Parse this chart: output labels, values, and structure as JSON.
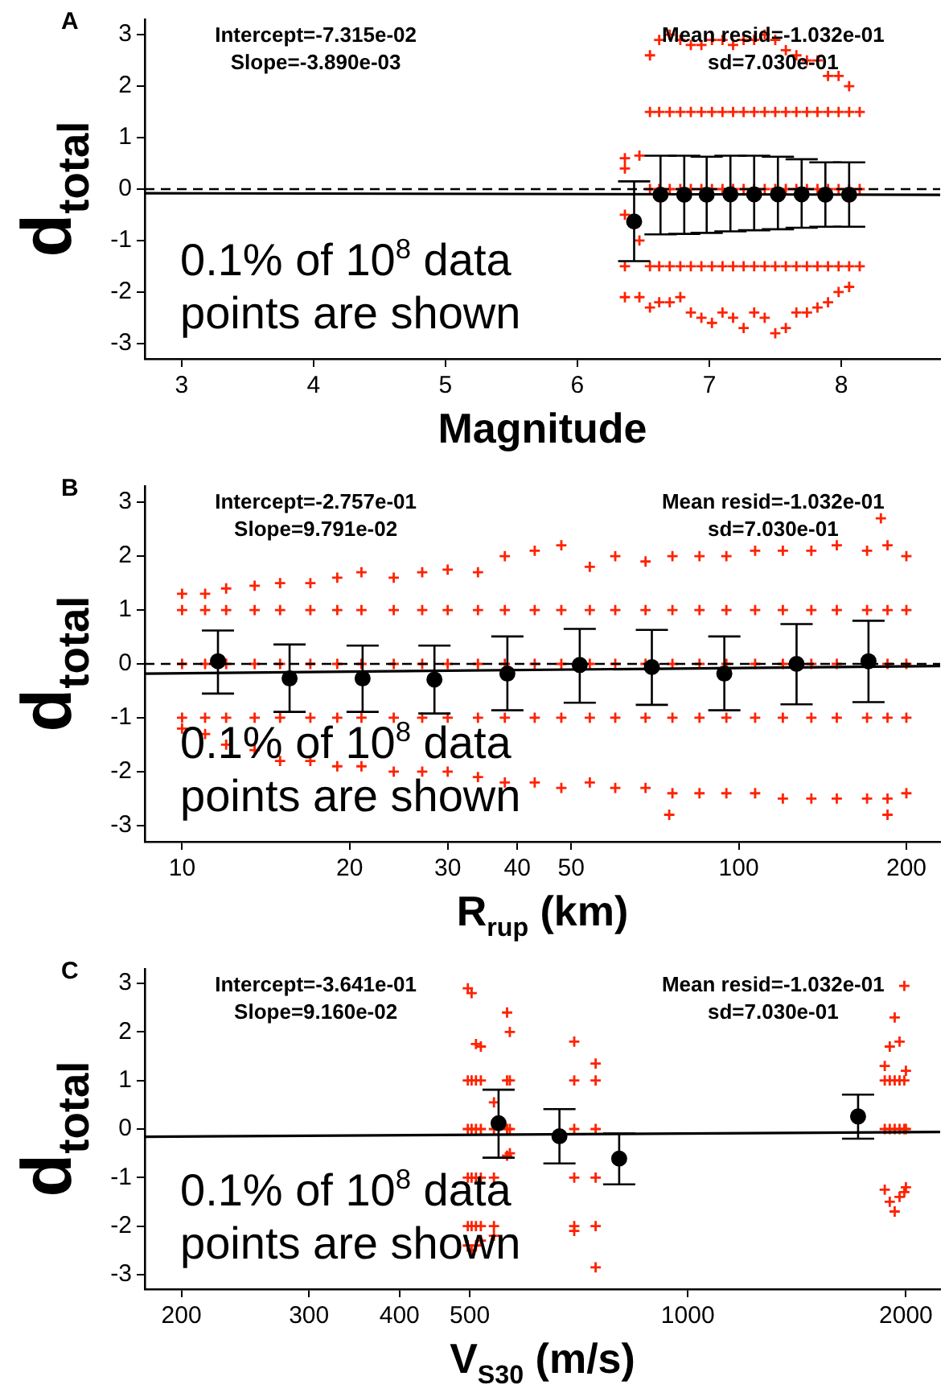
{
  "chart_data": [
    {
      "type": "scatter",
      "title": "A",
      "xlabel": "Magnitude",
      "ylabel": "d$_{total}$",
      "xlim": [
        2.72,
        8.75
      ],
      "ylim": [
        -3.3,
        3.3
      ],
      "xticks": [
        3,
        4,
        5,
        6,
        7,
        8
      ],
      "yticks": [
        -3,
        -2,
        -1,
        0,
        1,
        2,
        3
      ],
      "grid": false,
      "annotations": [
        "Intercept=-7.315e-02\nSlope=-3.890e-03",
        "Mean resid=-1.032e-01\nsd=7.030e-01",
        "0.1% of 10$^{8}$ data\npoints are shown"
      ],
      "ref_lines": [
        {
          "axis": "y",
          "value": 0,
          "line_style": "dashed",
          "color": "#000000"
        }
      ],
      "series": [
        {
          "color": "#ff2200",
          "marker": "cross",
          "x": [
            6.36,
            6.36,
            6.36,
            6.36,
            6.36,
            6.47,
            6.47,
            6.47,
            6.55,
            6.55,
            6.55,
            6.55,
            6.55,
            6.62,
            6.62,
            6.62,
            6.62,
            6.62,
            6.7,
            6.7,
            6.7,
            6.7,
            6.7,
            6.78,
            6.78,
            6.78,
            6.78,
            6.78,
            6.86,
            6.86,
            6.86,
            6.86,
            6.86,
            6.94,
            6.94,
            6.94,
            6.94,
            6.94,
            7.02,
            7.02,
            7.02,
            7.02,
            7.02,
            7.1,
            7.1,
            7.1,
            7.1,
            7.1,
            7.18,
            7.18,
            7.18,
            7.18,
            7.18,
            7.26,
            7.26,
            7.26,
            7.26,
            7.26,
            7.34,
            7.34,
            7.34,
            7.34,
            7.34,
            7.42,
            7.42,
            7.42,
            7.42,
            7.42,
            7.5,
            7.5,
            7.5,
            7.5,
            7.5,
            7.58,
            7.58,
            7.58,
            7.58,
            7.58,
            7.66,
            7.66,
            7.66,
            7.66,
            7.66,
            7.74,
            7.74,
            7.74,
            7.74,
            7.74,
            7.82,
            7.82,
            7.82,
            7.82,
            7.82,
            7.9,
            7.9,
            7.9,
            7.9,
            7.9,
            7.98,
            7.98,
            7.98,
            7.98,
            7.98,
            8.06,
            8.06,
            8.06,
            8.06,
            8.06,
            8.14,
            8.14,
            8.14
          ],
          "values": [
            0.6,
            0.4,
            -0.5,
            -1.5,
            -2.1,
            0.65,
            -1.0,
            -2.1,
            2.6,
            1.5,
            0,
            -1.5,
            -2.3,
            2.9,
            1.5,
            0,
            -1.5,
            -2.2,
            3.0,
            1.5,
            0,
            -1.5,
            -2.2,
            2.9,
            1.5,
            0,
            -1.5,
            -2.1,
            2.8,
            1.5,
            0,
            -1.5,
            -2.4,
            2.8,
            1.5,
            0,
            -1.5,
            -2.5,
            2.9,
            1.5,
            0,
            -1.5,
            -2.6,
            2.9,
            1.5,
            0,
            -1.5,
            -2.4,
            2.8,
            1.5,
            0,
            -1.5,
            -2.5,
            2.9,
            1.5,
            0,
            -1.5,
            -2.7,
            2.9,
            1.5,
            0,
            -1.5,
            -2.4,
            3.0,
            1.5,
            0,
            -1.5,
            -2.5,
            2.9,
            1.5,
            0,
            -1.5,
            -2.8,
            2.7,
            1.5,
            0,
            -1.5,
            -2.7,
            2.6,
            1.5,
            0,
            -1.5,
            -2.4,
            2.5,
            1.5,
            0,
            -1.5,
            -2.4,
            2.5,
            1.5,
            0,
            -1.5,
            -2.3,
            2.2,
            1.5,
            0,
            -1.5,
            -2.2,
            2.2,
            1.5,
            0,
            -1.5,
            -2.0,
            2.0,
            1.5,
            0,
            -1.5,
            -1.9,
            1.5,
            0,
            -1.5
          ]
        },
        {
          "type": "line",
          "color": "#000000",
          "x": [
            2.72,
            8.75
          ],
          "values": [
            -0.08,
            -0.11
          ]
        },
        {
          "color": "#000000",
          "marker": "circle",
          "x": [
            6.43,
            6.63,
            6.81,
            6.98,
            7.16,
            7.34,
            7.52,
            7.7,
            7.88,
            8.06
          ],
          "values": [
            -0.63,
            -0.11,
            -0.11,
            -0.11,
            -0.1,
            -0.1,
            -0.1,
            -0.1,
            -0.11,
            -0.11
          ],
          "errors": [
            [
              -1.4,
              0.15
            ],
            [
              -0.88,
              0.65
            ],
            [
              -0.87,
              0.65
            ],
            [
              -0.85,
              0.63
            ],
            [
              -0.82,
              0.65
            ],
            [
              -0.8,
              0.65
            ],
            [
              -0.78,
              0.63
            ],
            [
              -0.75,
              0.58
            ],
            [
              -0.73,
              0.52
            ],
            [
              -0.73,
              0.52
            ]
          ]
        }
      ]
    },
    {
      "type": "scatter",
      "title": "B",
      "xlabel": "R$_{rup}$ (km)",
      "ylabel": "d$_{total}$",
      "log": "x",
      "xlim": [
        8.57,
        230
      ],
      "ylim": [
        -3.3,
        3.3
      ],
      "xticks": [
        10,
        20,
        30,
        40,
        50,
        100,
        200
      ],
      "yticks": [
        -3,
        -2,
        -1,
        0,
        1,
        2,
        3
      ],
      "grid": false,
      "annotations": [
        "Intercept=-2.757e-01\nSlope=9.791e-02",
        "Mean resid=-1.032e-01\nsd=7.030e-01",
        "0.1% of 10$^{8}$ data\npoints are shown"
      ],
      "ref_lines": [
        {
          "axis": "y",
          "value": 0,
          "line_style": "dashed",
          "color": "#000000"
        }
      ],
      "series": [
        {
          "color": "#ff2200",
          "marker": "cross",
          "x": [
            10,
            10,
            10,
            10,
            10,
            11,
            11,
            11,
            11,
            11,
            12,
            12,
            12,
            12,
            12,
            13.5,
            13.5,
            13.5,
            13.5,
            13.5,
            15,
            15,
            15,
            15,
            15,
            17,
            17,
            17,
            17,
            17,
            19,
            19,
            19,
            19,
            19,
            21,
            21,
            21,
            21,
            21,
            24,
            24,
            24,
            24,
            24,
            27,
            27,
            27,
            27,
            27,
            30,
            30,
            30,
            30,
            30,
            34,
            34,
            34,
            34,
            34,
            38,
            38,
            38,
            38,
            38,
            43,
            43,
            43,
            43,
            43,
            48,
            48,
            48,
            48,
            48,
            54,
            54,
            54,
            54,
            54,
            60,
            60,
            60,
            60,
            60,
            68,
            68,
            68,
            68,
            68,
            76,
            76,
            76,
            76,
            76,
            85,
            85,
            85,
            85,
            85,
            95,
            95,
            95,
            95,
            95,
            107,
            107,
            107,
            107,
            107,
            120,
            120,
            120,
            120,
            120,
            135,
            135,
            135,
            135,
            135,
            150,
            150,
            150,
            150,
            150,
            170,
            170,
            170,
            170,
            170,
            185,
            185,
            185,
            185,
            185,
            200,
            200,
            200,
            200,
            200,
            180,
            75,
            185
          ],
          "values": [
            1.3,
            1,
            0,
            -1,
            -1.2,
            1.3,
            1,
            0,
            -1,
            -1.3,
            1.4,
            1,
            0,
            -1,
            -1.5,
            1.45,
            1,
            0,
            -1,
            -1.6,
            1.5,
            1,
            0,
            -1,
            -1.8,
            1.5,
            1,
            0,
            -1,
            -1.8,
            1.6,
            1,
            0,
            -1,
            -1.9,
            1.7,
            1,
            0,
            -1,
            -1.9,
            1.6,
            1,
            0,
            -1,
            -2.0,
            1.7,
            1,
            0,
            -1,
            -2.0,
            1.75,
            1,
            0,
            -1,
            -2.0,
            1.7,
            1,
            0,
            -1,
            -2.1,
            2.0,
            1,
            0,
            -1,
            -2.2,
            2.1,
            1,
            0,
            -1,
            -2.2,
            2.2,
            1,
            0,
            -1,
            -2.3,
            1.8,
            1,
            0,
            -1,
            -2.2,
            2.0,
            1,
            0,
            -1,
            -2.3,
            1.9,
            1,
            0,
            -1,
            -2.3,
            2.0,
            1,
            0,
            -1,
            -2.4,
            2.0,
            1,
            0,
            -1,
            -2.4,
            2.0,
            1,
            0,
            -1,
            -2.4,
            2.1,
            1,
            0,
            -1,
            -2.4,
            2.1,
            1,
            0,
            -1,
            -2.5,
            2.1,
            1,
            0,
            -1,
            -2.5,
            2.2,
            1,
            0,
            -1,
            -2.5,
            2.1,
            1,
            0,
            -1,
            -2.5,
            2.2,
            1,
            0,
            -1,
            -2.5,
            2.0,
            1,
            0,
            -1,
            -2.4,
            2.7,
            -2.8,
            -2.8
          ]
        },
        {
          "type": "line",
          "color": "#000000",
          "x": [
            8.57,
            230
          ],
          "values": [
            -0.18,
            -0.04
          ]
        },
        {
          "color": "#000000",
          "marker": "circle",
          "x": [
            11.6,
            15.6,
            21.1,
            28.4,
            38.4,
            51.8,
            69.8,
            94.2,
            127,
            171
          ],
          "values": [
            0.05,
            -0.27,
            -0.27,
            -0.29,
            -0.18,
            -0.02,
            -0.06,
            -0.18,
            0.0,
            0.05
          ],
          "errors": [
            [
              -0.55,
              0.62
            ],
            [
              -0.89,
              0.36
            ],
            [
              -0.89,
              0.34
            ],
            [
              -0.92,
              0.34
            ],
            [
              -0.86,
              0.51
            ],
            [
              -0.72,
              0.65
            ],
            [
              -0.76,
              0.63
            ],
            [
              -0.86,
              0.51
            ],
            [
              -0.75,
              0.74
            ],
            [
              -0.71,
              0.8
            ]
          ]
        }
      ]
    },
    {
      "type": "scatter",
      "title": "C",
      "xlabel": "V$_{S30}$ (m/s)",
      "ylabel": "d$_{total}$",
      "log": "x",
      "xlim": [
        178,
        2230
      ],
      "ylim": [
        -3.3,
        3.3
      ],
      "xticks": [
        200,
        300,
        400,
        500,
        1000,
        2000
      ],
      "yticks": [
        -3,
        -2,
        -1,
        0,
        1,
        2,
        3
      ],
      "grid": false,
      "annotations": [
        "Intercept=-3.641e-01\nSlope=9.160e-02",
        "Mean resid=-1.032e-01\nsd=7.030e-01",
        "0.1% of 10$^{8}$ data\npoints are shown"
      ],
      "series": [
        {
          "color": "#ff2200",
          "marker": "cross",
          "x": [
            497,
            497,
            497,
            497,
            497,
            497,
            503,
            503,
            503,
            503,
            503,
            503,
            510,
            510,
            510,
            510,
            510,
            510,
            518,
            518,
            518,
            518,
            518,
            518,
            540,
            540,
            540,
            540,
            540,
            563,
            563,
            563,
            563,
            568,
            568,
            568,
            568,
            697,
            697,
            697,
            697,
            697,
            697,
            746,
            746,
            746,
            746,
            746,
            746,
            1870,
            1870,
            1870,
            1870,
            1900,
            1900,
            1900,
            1900,
            1930,
            1930,
            1930,
            1930,
            1960,
            1960,
            1960,
            1960,
            1990,
            1990,
            1990,
            1990,
            2000,
            2000,
            2000
          ],
          "values": [
            2.9,
            1,
            0,
            -1,
            -2,
            -2.4,
            2.8,
            1,
            0,
            -1,
            -2,
            -2.5,
            1.75,
            1,
            0,
            -1,
            -2,
            -2.4,
            1.7,
            1,
            0,
            -1,
            -2,
            -2.3,
            0.55,
            0,
            -1,
            -2,
            -2.2,
            2.4,
            1,
            0,
            -0.55,
            2.0,
            1,
            0,
            -0.5,
            1.8,
            1,
            0,
            -1,
            -2,
            -2.1,
            1.35,
            1,
            0,
            -1,
            -2,
            -2.85,
            1.3,
            1,
            0,
            -1.25,
            1.7,
            1,
            0,
            -1.5,
            2.3,
            1,
            0,
            -1.7,
            1.8,
            1,
            0,
            -1.4,
            2.95,
            1,
            0,
            -1.3,
            1.2,
            0,
            -1.2
          ]
        },
        {
          "type": "line",
          "color": "#000000",
          "x": [
            178,
            2230
          ],
          "values": [
            -0.16,
            -0.06
          ]
        },
        {
          "color": "#000000",
          "marker": "circle",
          "x": [
            548,
            665,
            804,
            1718
          ],
          "values": [
            0.12,
            -0.15,
            -0.61,
            0.26
          ],
          "errors": [
            [
              -0.59,
              0.81
            ],
            [
              -0.71,
              0.41
            ],
            [
              -1.14,
              -0.09
            ],
            [
              -0.2,
              0.71
            ]
          ]
        }
      ]
    }
  ]
}
